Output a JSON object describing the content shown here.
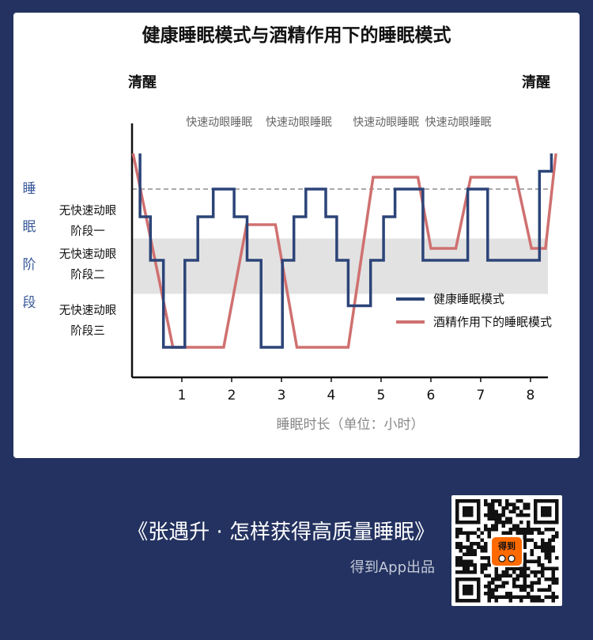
{
  "chart_data": {
    "type": "line",
    "title": "健康睡眠模式与酒精作用下的睡眠模式",
    "xlabel": "睡眠时长（单位：小时）",
    "ylabel": "睡眠阶段",
    "x_ticks": [
      "1",
      "2",
      "3",
      "4",
      "5",
      "6",
      "7",
      "8"
    ],
    "xlim": [
      0,
      8.35
    ],
    "y_levels": {
      "清醒": 4.9,
      "快速动眼睡眠": 4,
      "无快速动眼阶段一": 3.3,
      "无快速动眼阶段二": 2.2,
      "无快速动眼阶段三": 0
    },
    "wake_label": "清醒",
    "stage_labels": [
      {
        "line1": "无快速动眼",
        "line2": "阶段一",
        "y": 3.3
      },
      {
        "line1": "无快速动眼",
        "line2": "阶段二",
        "y": 2.2
      },
      {
        "line1": "无快速动眼",
        "line2": "阶段三",
        "y": 0
      }
    ],
    "rem_labels": [
      {
        "text": "快速动眼睡眠",
        "x": 1.75
      },
      {
        "text": "快速动眼睡眠",
        "x": 3.35
      },
      {
        "text": "快速动眼睡眠",
        "x": 5.1
      },
      {
        "text": "快速动眼睡眠",
        "x": 6.55
      }
    ],
    "series": [
      {
        "name": "健康睡眠模式",
        "color": "#2c4478",
        "points": [
          [
            0.16,
            4.9
          ],
          [
            0.16,
            3.3
          ],
          [
            0.37,
            3.3
          ],
          [
            0.37,
            2.2
          ],
          [
            0.63,
            2.2
          ],
          [
            0.63,
            0
          ],
          [
            1.06,
            0
          ],
          [
            1.06,
            2.2
          ],
          [
            1.32,
            2.2
          ],
          [
            1.32,
            3.3
          ],
          [
            1.63,
            3.3
          ],
          [
            1.63,
            4
          ],
          [
            2.05,
            4
          ],
          [
            2.05,
            3.3
          ],
          [
            2.31,
            3.3
          ],
          [
            2.31,
            2.2
          ],
          [
            2.59,
            2.2
          ],
          [
            2.59,
            0
          ],
          [
            3.02,
            0
          ],
          [
            3.02,
            2.2
          ],
          [
            3.25,
            2.2
          ],
          [
            3.25,
            3.3
          ],
          [
            3.49,
            3.3
          ],
          [
            3.49,
            4
          ],
          [
            3.89,
            4
          ],
          [
            3.89,
            3.3
          ],
          [
            4.11,
            3.3
          ],
          [
            4.11,
            2.2
          ],
          [
            4.34,
            2.2
          ],
          [
            4.34,
            1.05
          ],
          [
            4.79,
            1.05
          ],
          [
            4.79,
            2.2
          ],
          [
            5.05,
            2.2
          ],
          [
            5.05,
            3.3
          ],
          [
            5.28,
            3.3
          ],
          [
            5.28,
            4
          ],
          [
            5.84,
            4
          ],
          [
            5.84,
            2.2
          ],
          [
            6.74,
            2.2
          ],
          [
            6.74,
            4
          ],
          [
            7.14,
            4
          ],
          [
            7.14,
            2.2
          ],
          [
            8.18,
            2.2
          ],
          [
            8.18,
            4.45
          ],
          [
            8.42,
            4.45
          ],
          [
            8.42,
            4.9
          ]
        ]
      },
      {
        "name": "酒精作用下的睡眠模式",
        "color": "#d07070",
        "points": [
          [
            0.02,
            4.9
          ],
          [
            0.56,
            1.6
          ],
          [
            0.82,
            0
          ],
          [
            1.84,
            0
          ],
          [
            2.3,
            3.1
          ],
          [
            2.88,
            3.1
          ],
          [
            3.31,
            0
          ],
          [
            4.34,
            0
          ],
          [
            4.84,
            4.3
          ],
          [
            5.74,
            4.3
          ],
          [
            6.0,
            2.5
          ],
          [
            6.5,
            2.5
          ],
          [
            6.8,
            4.3
          ],
          [
            7.71,
            4.3
          ],
          [
            8.02,
            2.5
          ],
          [
            8.3,
            2.5
          ],
          [
            8.51,
            4.9
          ]
        ]
      }
    ],
    "shaded_band": {
      "from": 1.35,
      "to": 2.75,
      "color": "#e2e2e2"
    },
    "legend_position": "right-middle"
  },
  "footer": {
    "book_title": "《张遇升 · 怎样获得高质量睡眠》",
    "publisher": "得到App出品"
  },
  "qr": {
    "badge_text": "得到"
  }
}
